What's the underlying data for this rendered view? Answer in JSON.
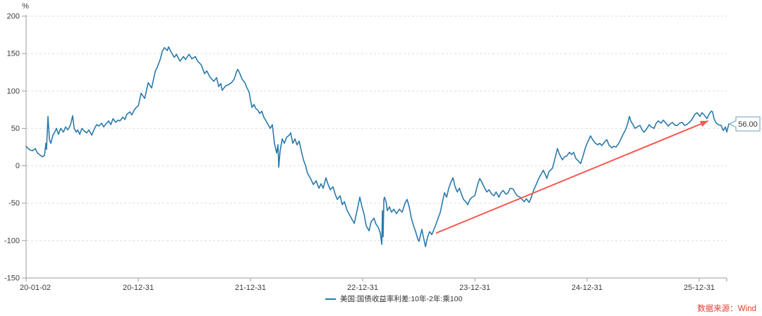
{
  "chart_data": {
    "type": "line",
    "title": "",
    "ylabel": "%",
    "ylim": [
      -150,
      200
    ],
    "xlim": [
      0,
      6.245
    ],
    "y_ticks": [
      200,
      150,
      100,
      50,
      0,
      -50,
      -100,
      -150
    ],
    "x_ticks": [
      {
        "t": 0,
        "label": "20-01-02",
        "align": "start"
      },
      {
        "t": 1,
        "label": "20-12-31",
        "align": "middle"
      },
      {
        "t": 2,
        "label": "21-12-31",
        "align": "middle"
      },
      {
        "t": 3,
        "label": "22-12-31",
        "align": "middle"
      },
      {
        "t": 4,
        "label": "23-12-31",
        "align": "middle"
      },
      {
        "t": 5,
        "label": "24-12-31",
        "align": "middle"
      },
      {
        "t": 6,
        "label": "25-12-31",
        "align": "middle"
      }
    ],
    "x_axis_end_tick": true,
    "grid": "dashed-horizontal",
    "legend_position": "bottom-center",
    "series": [
      {
        "name": "美国:国债收益率利差:10年-2年:乘100",
        "color": "#2a7aab"
      }
    ],
    "colors": {
      "line": "#2a7aab",
      "grid": "#dedede",
      "axis": "#9b9b9b",
      "tick_text": "#3c3c3c",
      "legend_text": "#333333",
      "arrow": "#f8584f",
      "source_text": "#e63c30",
      "callout_border": "#7fa9c9",
      "callout_text": "#333333",
      "background": "#ffffff"
    },
    "points": [
      [
        0.0,
        26
      ],
      [
        0.019,
        23
      ],
      [
        0.038,
        21
      ],
      [
        0.057,
        20
      ],
      [
        0.082,
        23
      ],
      [
        0.101,
        17
      ],
      [
        0.119,
        15
      ],
      [
        0.145,
        12
      ],
      [
        0.164,
        14
      ],
      [
        0.176,
        30
      ],
      [
        0.182,
        22
      ],
      [
        0.195,
        66
      ],
      [
        0.208,
        35
      ],
      [
        0.22,
        30
      ],
      [
        0.239,
        41
      ],
      [
        0.252,
        44
      ],
      [
        0.27,
        50
      ],
      [
        0.289,
        42
      ],
      [
        0.308,
        50
      ],
      [
        0.333,
        45
      ],
      [
        0.352,
        52
      ],
      [
        0.371,
        48
      ],
      [
        0.396,
        55
      ],
      [
        0.415,
        67
      ],
      [
        0.428,
        50
      ],
      [
        0.447,
        45
      ],
      [
        0.459,
        48
      ],
      [
        0.478,
        42
      ],
      [
        0.497,
        50
      ],
      [
        0.522,
        46
      ],
      [
        0.541,
        44
      ],
      [
        0.56,
        48
      ],
      [
        0.585,
        41
      ],
      [
        0.61,
        50
      ],
      [
        0.629,
        55
      ],
      [
        0.648,
        53
      ],
      [
        0.673,
        57
      ],
      [
        0.692,
        52
      ],
      [
        0.711,
        56
      ],
      [
        0.736,
        60
      ],
      [
        0.755,
        55
      ],
      [
        0.774,
        63
      ],
      [
        0.799,
        58
      ],
      [
        0.818,
        61
      ],
      [
        0.836,
        60
      ],
      [
        0.862,
        65
      ],
      [
        0.881,
        62
      ],
      [
        0.899,
        69
      ],
      [
        0.925,
        72
      ],
      [
        0.943,
        68
      ],
      [
        0.962,
        74
      ],
      [
        0.981,
        78
      ],
      [
        1.0,
        80
      ],
      [
        1.025,
        97
      ],
      [
        1.057,
        90
      ],
      [
        1.088,
        111
      ],
      [
        1.119,
        104
      ],
      [
        1.151,
        126
      ],
      [
        1.17,
        132
      ],
      [
        1.195,
        142
      ],
      [
        1.214,
        153
      ],
      [
        1.233,
        158
      ],
      [
        1.258,
        154
      ],
      [
        1.27,
        159
      ],
      [
        1.289,
        153
      ],
      [
        1.321,
        145
      ],
      [
        1.34,
        149
      ],
      [
        1.371,
        140
      ],
      [
        1.403,
        146
      ],
      [
        1.421,
        142
      ],
      [
        1.453,
        149
      ],
      [
        1.478,
        143
      ],
      [
        1.509,
        146
      ],
      [
        1.528,
        140
      ],
      [
        1.56,
        135
      ],
      [
        1.591,
        123
      ],
      [
        1.61,
        127
      ],
      [
        1.642,
        118
      ],
      [
        1.673,
        113
      ],
      [
        1.698,
        118
      ],
      [
        1.717,
        106
      ],
      [
        1.736,
        110
      ],
      [
        1.748,
        101
      ],
      [
        1.78,
        107
      ],
      [
        1.799,
        108
      ],
      [
        1.83,
        111
      ],
      [
        1.855,
        116
      ],
      [
        1.874,
        125
      ],
      [
        1.887,
        129
      ],
      [
        1.906,
        123
      ],
      [
        1.925,
        116
      ],
      [
        1.95,
        111
      ],
      [
        1.969,
        104
      ],
      [
        1.987,
        99
      ],
      [
        2.013,
        78
      ],
      [
        2.031,
        82
      ],
      [
        2.05,
        76
      ],
      [
        2.063,
        75
      ],
      [
        2.082,
        70
      ],
      [
        2.101,
        73
      ],
      [
        2.119,
        65
      ],
      [
        2.138,
        60
      ],
      [
        2.157,
        55
      ],
      [
        2.176,
        50
      ],
      [
        2.195,
        55
      ],
      [
        2.214,
        30
      ],
      [
        2.233,
        17
      ],
      [
        2.245,
        28
      ],
      [
        2.252,
        -2
      ],
      [
        2.264,
        20
      ],
      [
        2.283,
        36
      ],
      [
        2.302,
        30
      ],
      [
        2.321,
        38
      ],
      [
        2.346,
        41
      ],
      [
        2.358,
        44
      ],
      [
        2.377,
        30
      ],
      [
        2.396,
        36
      ],
      [
        2.415,
        28
      ],
      [
        2.434,
        33
      ],
      [
        2.453,
        20
      ],
      [
        2.472,
        8
      ],
      [
        2.491,
        0
      ],
      [
        2.509,
        -10
      ],
      [
        2.535,
        -17
      ],
      [
        2.56,
        -25
      ],
      [
        2.585,
        -20
      ],
      [
        2.61,
        -30
      ],
      [
        2.629,
        -24
      ],
      [
        2.648,
        -30
      ],
      [
        2.673,
        -16
      ],
      [
        2.692,
        -25
      ],
      [
        2.711,
        -32
      ],
      [
        2.736,
        -28
      ],
      [
        2.755,
        -38
      ],
      [
        2.774,
        -45
      ],
      [
        2.799,
        -40
      ],
      [
        2.818,
        -52
      ],
      [
        2.837,
        -48
      ],
      [
        2.862,
        -60
      ],
      [
        2.881,
        -65
      ],
      [
        2.899,
        -70
      ],
      [
        2.925,
        -77
      ],
      [
        2.95,
        -60
      ],
      [
        2.975,
        -42
      ],
      [
        2.994,
        -55
      ],
      [
        3.013,
        -65
      ],
      [
        3.031,
        -80
      ],
      [
        3.057,
        -87
      ],
      [
        3.075,
        -75
      ],
      [
        3.101,
        -70
      ],
      [
        3.119,
        -78
      ],
      [
        3.138,
        -82
      ],
      [
        3.157,
        -90
      ],
      [
        3.17,
        -105
      ],
      [
        3.176,
        -60
      ],
      [
        3.182,
        -95
      ],
      [
        3.189,
        -45
      ],
      [
        3.195,
        -42
      ],
      [
        3.208,
        -48
      ],
      [
        3.22,
        -60
      ],
      [
        3.239,
        -55
      ],
      [
        3.258,
        -62
      ],
      [
        3.277,
        -58
      ],
      [
        3.302,
        -64
      ],
      [
        3.327,
        -58
      ],
      [
        3.352,
        -62
      ],
      [
        3.377,
        -50
      ],
      [
        3.396,
        -45
      ],
      [
        3.415,
        -55
      ],
      [
        3.434,
        -70
      ],
      [
        3.453,
        -80
      ],
      [
        3.472,
        -88
      ],
      [
        3.491,
        -98
      ],
      [
        3.503,
        -101
      ],
      [
        3.516,
        -92
      ],
      [
        3.528,
        -85
      ],
      [
        3.541,
        -95
      ],
      [
        3.56,
        -108
      ],
      [
        3.579,
        -95
      ],
      [
        3.597,
        -88
      ],
      [
        3.616,
        -92
      ],
      [
        3.635,
        -85
      ],
      [
        3.654,
        -78
      ],
      [
        3.673,
        -70
      ],
      [
        3.692,
        -62
      ],
      [
        3.711,
        -48
      ],
      [
        3.73,
        -36
      ],
      [
        3.748,
        -42
      ],
      [
        3.767,
        -30
      ],
      [
        3.786,
        -22
      ],
      [
        3.805,
        -16
      ],
      [
        3.824,
        -28
      ],
      [
        3.843,
        -35
      ],
      [
        3.862,
        -30
      ],
      [
        3.881,
        -38
      ],
      [
        3.899,
        -45
      ],
      [
        3.918,
        -48
      ],
      [
        3.937,
        -52
      ],
      [
        3.956,
        -45
      ],
      [
        3.975,
        -42
      ],
      [
        4.0,
        -40
      ],
      [
        4.025,
        -25
      ],
      [
        4.044,
        -17
      ],
      [
        4.063,
        -22
      ],
      [
        4.088,
        -30
      ],
      [
        4.107,
        -35
      ],
      [
        4.126,
        -32
      ],
      [
        4.151,
        -38
      ],
      [
        4.17,
        -40
      ],
      [
        4.189,
        -35
      ],
      [
        4.214,
        -42
      ],
      [
        4.233,
        -36
      ],
      [
        4.252,
        -33
      ],
      [
        4.277,
        -38
      ],
      [
        4.296,
        -36
      ],
      [
        4.314,
        -30
      ],
      [
        4.34,
        -31
      ],
      [
        4.358,
        -36
      ],
      [
        4.377,
        -40
      ],
      [
        4.403,
        -42
      ],
      [
        4.421,
        -45
      ],
      [
        4.44,
        -48
      ],
      [
        4.459,
        -44
      ],
      [
        4.484,
        -49
      ],
      [
        4.503,
        -42
      ],
      [
        4.528,
        -31
      ],
      [
        4.547,
        -25
      ],
      [
        4.566,
        -18
      ],
      [
        4.591,
        -11
      ],
      [
        4.61,
        -6
      ],
      [
        4.629,
        -12
      ],
      [
        4.642,
        -17
      ],
      [
        4.66,
        -8
      ],
      [
        4.679,
        -5
      ],
      [
        4.692,
        -3
      ],
      [
        4.711,
        8
      ],
      [
        4.736,
        23
      ],
      [
        4.755,
        15
      ],
      [
        4.78,
        8
      ],
      [
        4.799,
        12
      ],
      [
        4.818,
        13
      ],
      [
        4.843,
        18
      ],
      [
        4.862,
        15
      ],
      [
        4.881,
        18
      ],
      [
        4.899,
        10
      ],
      [
        4.925,
        6
      ],
      [
        4.943,
        3
      ],
      [
        4.962,
        12
      ],
      [
        4.987,
        25
      ],
      [
        5.006,
        32
      ],
      [
        5.031,
        40
      ],
      [
        5.05,
        35
      ],
      [
        5.069,
        31
      ],
      [
        5.094,
        28
      ],
      [
        5.113,
        30
      ],
      [
        5.132,
        27
      ],
      [
        5.157,
        32
      ],
      [
        5.176,
        35
      ],
      [
        5.195,
        28
      ],
      [
        5.22,
        24
      ],
      [
        5.239,
        26
      ],
      [
        5.258,
        25
      ],
      [
        5.283,
        30
      ],
      [
        5.302,
        36
      ],
      [
        5.321,
        42
      ],
      [
        5.346,
        49
      ],
      [
        5.365,
        58
      ],
      [
        5.377,
        66
      ],
      [
        5.39,
        60
      ],
      [
        5.409,
        55
      ],
      [
        5.428,
        50
      ],
      [
        5.447,
        52
      ],
      [
        5.472,
        54
      ],
      [
        5.491,
        48
      ],
      [
        5.509,
        45
      ],
      [
        5.535,
        50
      ],
      [
        5.553,
        55
      ],
      [
        5.572,
        52
      ],
      [
        5.597,
        50
      ],
      [
        5.616,
        57
      ],
      [
        5.635,
        60
      ],
      [
        5.66,
        57
      ],
      [
        5.679,
        61
      ],
      [
        5.698,
        58
      ],
      [
        5.723,
        53
      ],
      [
        5.742,
        56
      ],
      [
        5.761,
        58
      ],
      [
        5.786,
        54
      ],
      [
        5.805,
        54
      ],
      [
        5.824,
        57
      ],
      [
        5.849,
        58
      ],
      [
        5.868,
        54
      ],
      [
        5.887,
        55
      ],
      [
        5.912,
        58
      ],
      [
        5.931,
        61
      ],
      [
        5.962,
        69
      ],
      [
        5.981,
        71
      ],
      [
        6.006,
        66
      ],
      [
        6.025,
        71
      ],
      [
        6.044,
        68
      ],
      [
        6.069,
        63
      ],
      [
        6.088,
        69
      ],
      [
        6.107,
        73
      ],
      [
        6.119,
        72
      ],
      [
        6.132,
        63
      ],
      [
        6.151,
        57
      ],
      [
        6.17,
        55
      ],
      [
        6.195,
        54
      ],
      [
        6.214,
        47
      ],
      [
        6.233,
        52
      ],
      [
        6.245,
        45
      ],
      [
        6.264,
        56
      ]
    ]
  },
  "legend": {
    "items": [
      {
        "label": "美国:国债收益率利差:10年-2年:乘100"
      }
    ]
  },
  "annotation": {
    "label": "56.00",
    "at": [
      6.264,
      56
    ],
    "arrow": {
      "from": [
        3.654,
        -90
      ],
      "to": [
        6.08,
        60
      ]
    }
  },
  "footer": {
    "source_label": "数据来源：Wind"
  }
}
